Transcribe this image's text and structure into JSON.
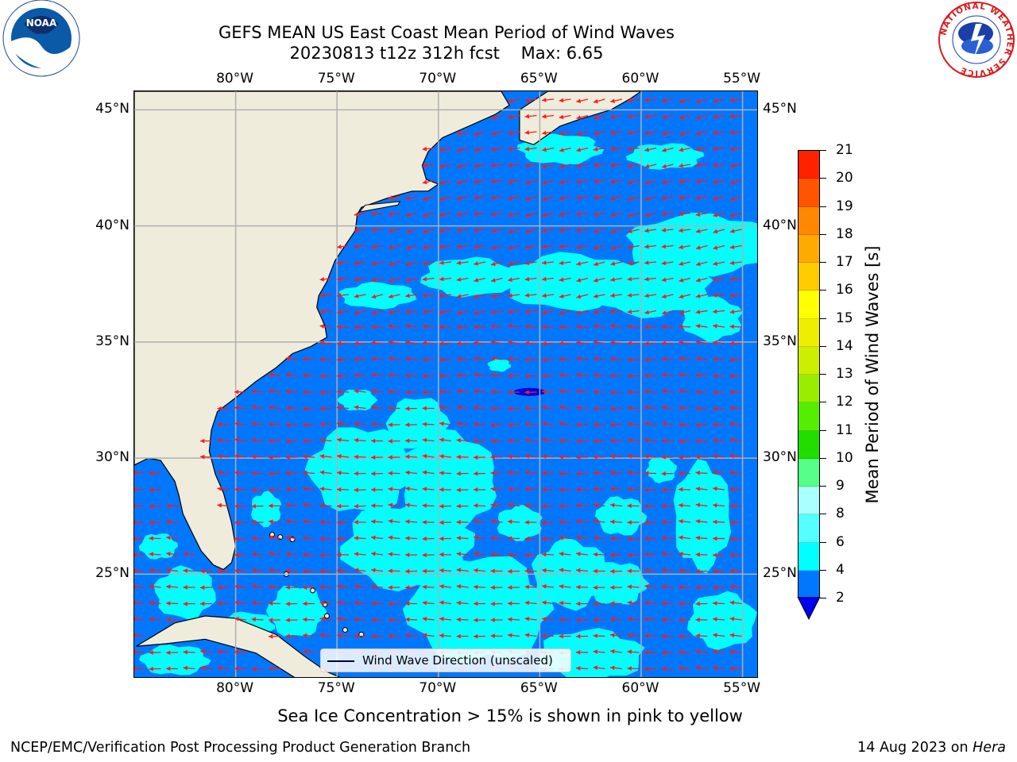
{
  "header": {
    "title_line1": "GEFS MEAN US East Coast Mean Period of Wind Waves",
    "title_line2": "20230813 t12z 312h fcst    Max: 6.65"
  },
  "logos": {
    "noaa": {
      "label": "NOAA",
      "colors": {
        "sky": "#0a5aa8",
        "white": "#ffffff"
      }
    },
    "nws": {
      "text": "NATIONAL WEATHER SERVICE",
      "colors": {
        "ring": "#d81e1e",
        "blue": "#1a3fa8"
      }
    }
  },
  "map": {
    "projection": "PlateCarree",
    "lon_range": [
      -85,
      -54.2
    ],
    "lat_range": [
      20.5,
      45.8
    ],
    "lon_ticks": [
      {
        "value": -80,
        "label": "80°W"
      },
      {
        "value": -75,
        "label": "75°W"
      },
      {
        "value": -70,
        "label": "70°W"
      },
      {
        "value": -65,
        "label": "65°W"
      },
      {
        "value": -60,
        "label": "60°W"
      },
      {
        "value": -55,
        "label": "55°W"
      }
    ],
    "lat_ticks": [
      {
        "value": 45,
        "label": "45°N"
      },
      {
        "value": 40,
        "label": "40°N"
      },
      {
        "value": 35,
        "label": "35°N"
      },
      {
        "value": 30,
        "label": "30°N"
      },
      {
        "value": 25,
        "label": "25°N"
      }
    ],
    "gridlines": true,
    "colors": {
      "land": "#efecdc",
      "coast": "#000000",
      "grid": "#b0b0b0",
      "arrow": "#ff1a1a",
      "period_2_4": "#0077ff",
      "period_4_6": "#00ffff",
      "period_6_8": "#55ffff",
      "period_below_2": "#0000dd"
    },
    "legend": {
      "label": "Wind Wave Direction (unscaled)",
      "placement": "lower center"
    }
  },
  "colorbar": {
    "label": "Mean Period of Wind Waves [s]",
    "extend": "min",
    "tick_labels": [
      "2",
      "4",
      "6",
      "8",
      "9",
      "10",
      "11",
      "12",
      "13",
      "14",
      "15",
      "16",
      "17",
      "18",
      "19",
      "20",
      "21"
    ],
    "levels": [
      2,
      4,
      6,
      8,
      9,
      10,
      11,
      12,
      13,
      14,
      15,
      16,
      17,
      18,
      19,
      20,
      21
    ],
    "colors": [
      "#0077ff",
      "#00ffff",
      "#55ffff",
      "#aaffff",
      "#55ff88",
      "#22dd00",
      "#55ee00",
      "#99ee00",
      "#ccee00",
      "#eeee00",
      "#ffff00",
      "#ffcc00",
      "#ffaa00",
      "#ff8800",
      "#ff5500",
      "#ff2200"
    ],
    "under_color": "#0000ee"
  },
  "subtitle": "Sea Ice Concentration > 15% is shown in pink to yellow",
  "footer": {
    "left": "NCEP/EMC/Verification Post Processing Product Generation Branch",
    "right_date": "14 Aug 2023 on ",
    "right_machine": "Hera"
  }
}
